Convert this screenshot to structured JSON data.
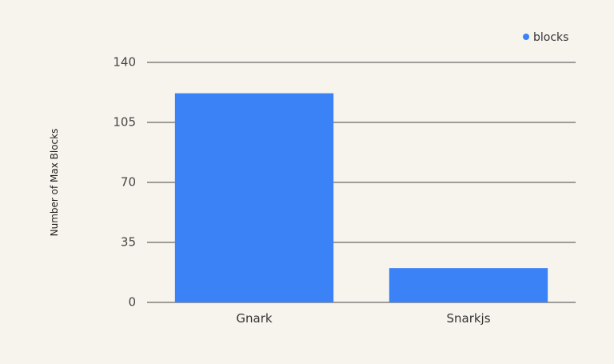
{
  "chart_data": {
    "type": "bar",
    "title": "",
    "xlabel": "",
    "ylabel": "Number of Max Blocks",
    "categories": [
      "Gnark",
      "Snarkjs"
    ],
    "series": [
      {
        "name": "blocks",
        "values": [
          122,
          20
        ]
      }
    ],
    "ylim": [
      0,
      140
    ],
    "yticks": [
      0,
      35,
      70,
      105,
      140
    ],
    "grid": true,
    "legend_position": "top-right",
    "colors": {
      "bar": "#3b82f6",
      "grid": "#444444",
      "background": "#f7f4ee"
    }
  }
}
